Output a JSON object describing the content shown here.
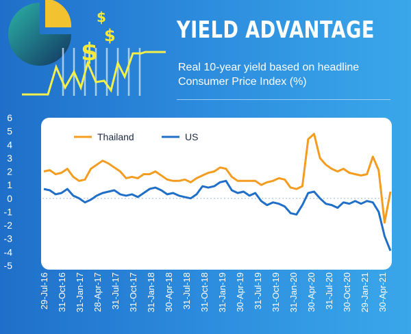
{
  "header": {
    "title": "YIELD ADVANTAGE",
    "subtitle": "Real 10-year yield based on headline Consumer Price Index (%)"
  },
  "illustration": {
    "icons": [
      "pie-chart-icon",
      "dollar-sign-icon",
      "money-bag-icon",
      "coin-stack-icon",
      "person-icon",
      "office-desk-icon"
    ],
    "colors": {
      "gold": "#f2b632",
      "bag": "#c0392b",
      "sparkline": "#f4f04a"
    }
  },
  "chart_data": {
    "type": "line",
    "title": "YIELD ADVANTAGE",
    "subtitle": "Real 10-year yield based on headline Consumer Price Index (%)",
    "xlabel": "",
    "ylabel": "",
    "ylim": [
      -5,
      6
    ],
    "yticks": [
      6,
      5,
      4,
      3,
      2,
      1,
      0,
      -1,
      -2,
      -3,
      -4,
      -5
    ],
    "grid": false,
    "legend_position": "top-left",
    "x_tick_labels": [
      "29-Jul-16",
      "31-Oct-16",
      "31-Jan-17",
      "28-Apr-17",
      "31-Jul-17",
      "31-Oct-17",
      "31-Jan-18",
      "30-Apr-18",
      "31-Jul-18",
      "31-Oct-18",
      "31-Jan-19",
      "30-Apr-19",
      "31-Jul-19",
      "31-Oct-19",
      "31-Jan-20",
      "30-Apr-20",
      "31-Jul-20",
      "30-Oct-20",
      "29-Jan-21",
      "30-Apr-21"
    ],
    "x": [
      "Jul-16",
      "Aug-16",
      "Sep-16",
      "Oct-16",
      "Nov-16",
      "Dec-16",
      "Jan-17",
      "Feb-17",
      "Mar-17",
      "Apr-17",
      "May-17",
      "Jun-17",
      "Jul-17",
      "Aug-17",
      "Sep-17",
      "Oct-17",
      "Nov-17",
      "Dec-17",
      "Jan-18",
      "Feb-18",
      "Mar-18",
      "Apr-18",
      "May-18",
      "Jun-18",
      "Jul-18",
      "Aug-18",
      "Sep-18",
      "Oct-18",
      "Nov-18",
      "Dec-18",
      "Jan-19",
      "Feb-19",
      "Mar-19",
      "Apr-19",
      "May-19",
      "Jun-19",
      "Jul-19",
      "Aug-19",
      "Sep-19",
      "Oct-19",
      "Nov-19",
      "Dec-19",
      "Jan-20",
      "Feb-20",
      "Mar-20",
      "Apr-20",
      "May-20",
      "Jun-20",
      "Jul-20",
      "Aug-20",
      "Sep-20",
      "Oct-20",
      "Nov-20",
      "Dec-20",
      "Jan-21",
      "Feb-21",
      "Mar-21",
      "Apr-21",
      "May-21",
      "Jun-21"
    ],
    "series": [
      {
        "name": "Thailand",
        "color": "#f39c1f",
        "values": [
          2.0,
          2.1,
          1.8,
          1.9,
          2.2,
          1.6,
          1.3,
          1.4,
          2.2,
          2.5,
          2.8,
          2.6,
          2.3,
          2.0,
          1.5,
          1.6,
          1.5,
          1.8,
          1.8,
          2.0,
          1.7,
          1.4,
          1.3,
          1.3,
          1.4,
          1.2,
          1.5,
          1.7,
          1.9,
          2.0,
          2.3,
          2.2,
          1.6,
          1.3,
          1.3,
          1.3,
          1.3,
          1.0,
          1.2,
          1.3,
          1.5,
          1.4,
          0.8,
          0.7,
          0.9,
          4.4,
          4.8,
          3.0,
          2.5,
          2.2,
          2.0,
          2.2,
          1.9,
          1.8,
          1.7,
          1.8,
          3.1,
          2.1,
          -1.8,
          0.5
        ]
      },
      {
        "name": "US",
        "color": "#1f6fc9",
        "values": [
          0.7,
          0.6,
          0.3,
          0.4,
          0.7,
          0.2,
          0.0,
          -0.3,
          -0.1,
          0.2,
          0.4,
          0.5,
          0.6,
          0.3,
          0.2,
          0.3,
          0.1,
          0.4,
          0.7,
          0.8,
          0.6,
          0.3,
          0.4,
          0.2,
          0.1,
          0.0,
          0.3,
          0.9,
          0.8,
          0.9,
          1.2,
          1.3,
          0.6,
          0.4,
          0.5,
          0.2,
          0.4,
          -0.2,
          -0.5,
          -0.3,
          -0.4,
          -0.6,
          -1.1,
          -1.2,
          -0.5,
          0.4,
          0.5,
          0.0,
          -0.4,
          -0.5,
          -0.7,
          -0.3,
          -0.4,
          -0.2,
          -0.4,
          -0.2,
          -0.3,
          -1.0,
          -2.8,
          -3.9
        ]
      }
    ]
  }
}
